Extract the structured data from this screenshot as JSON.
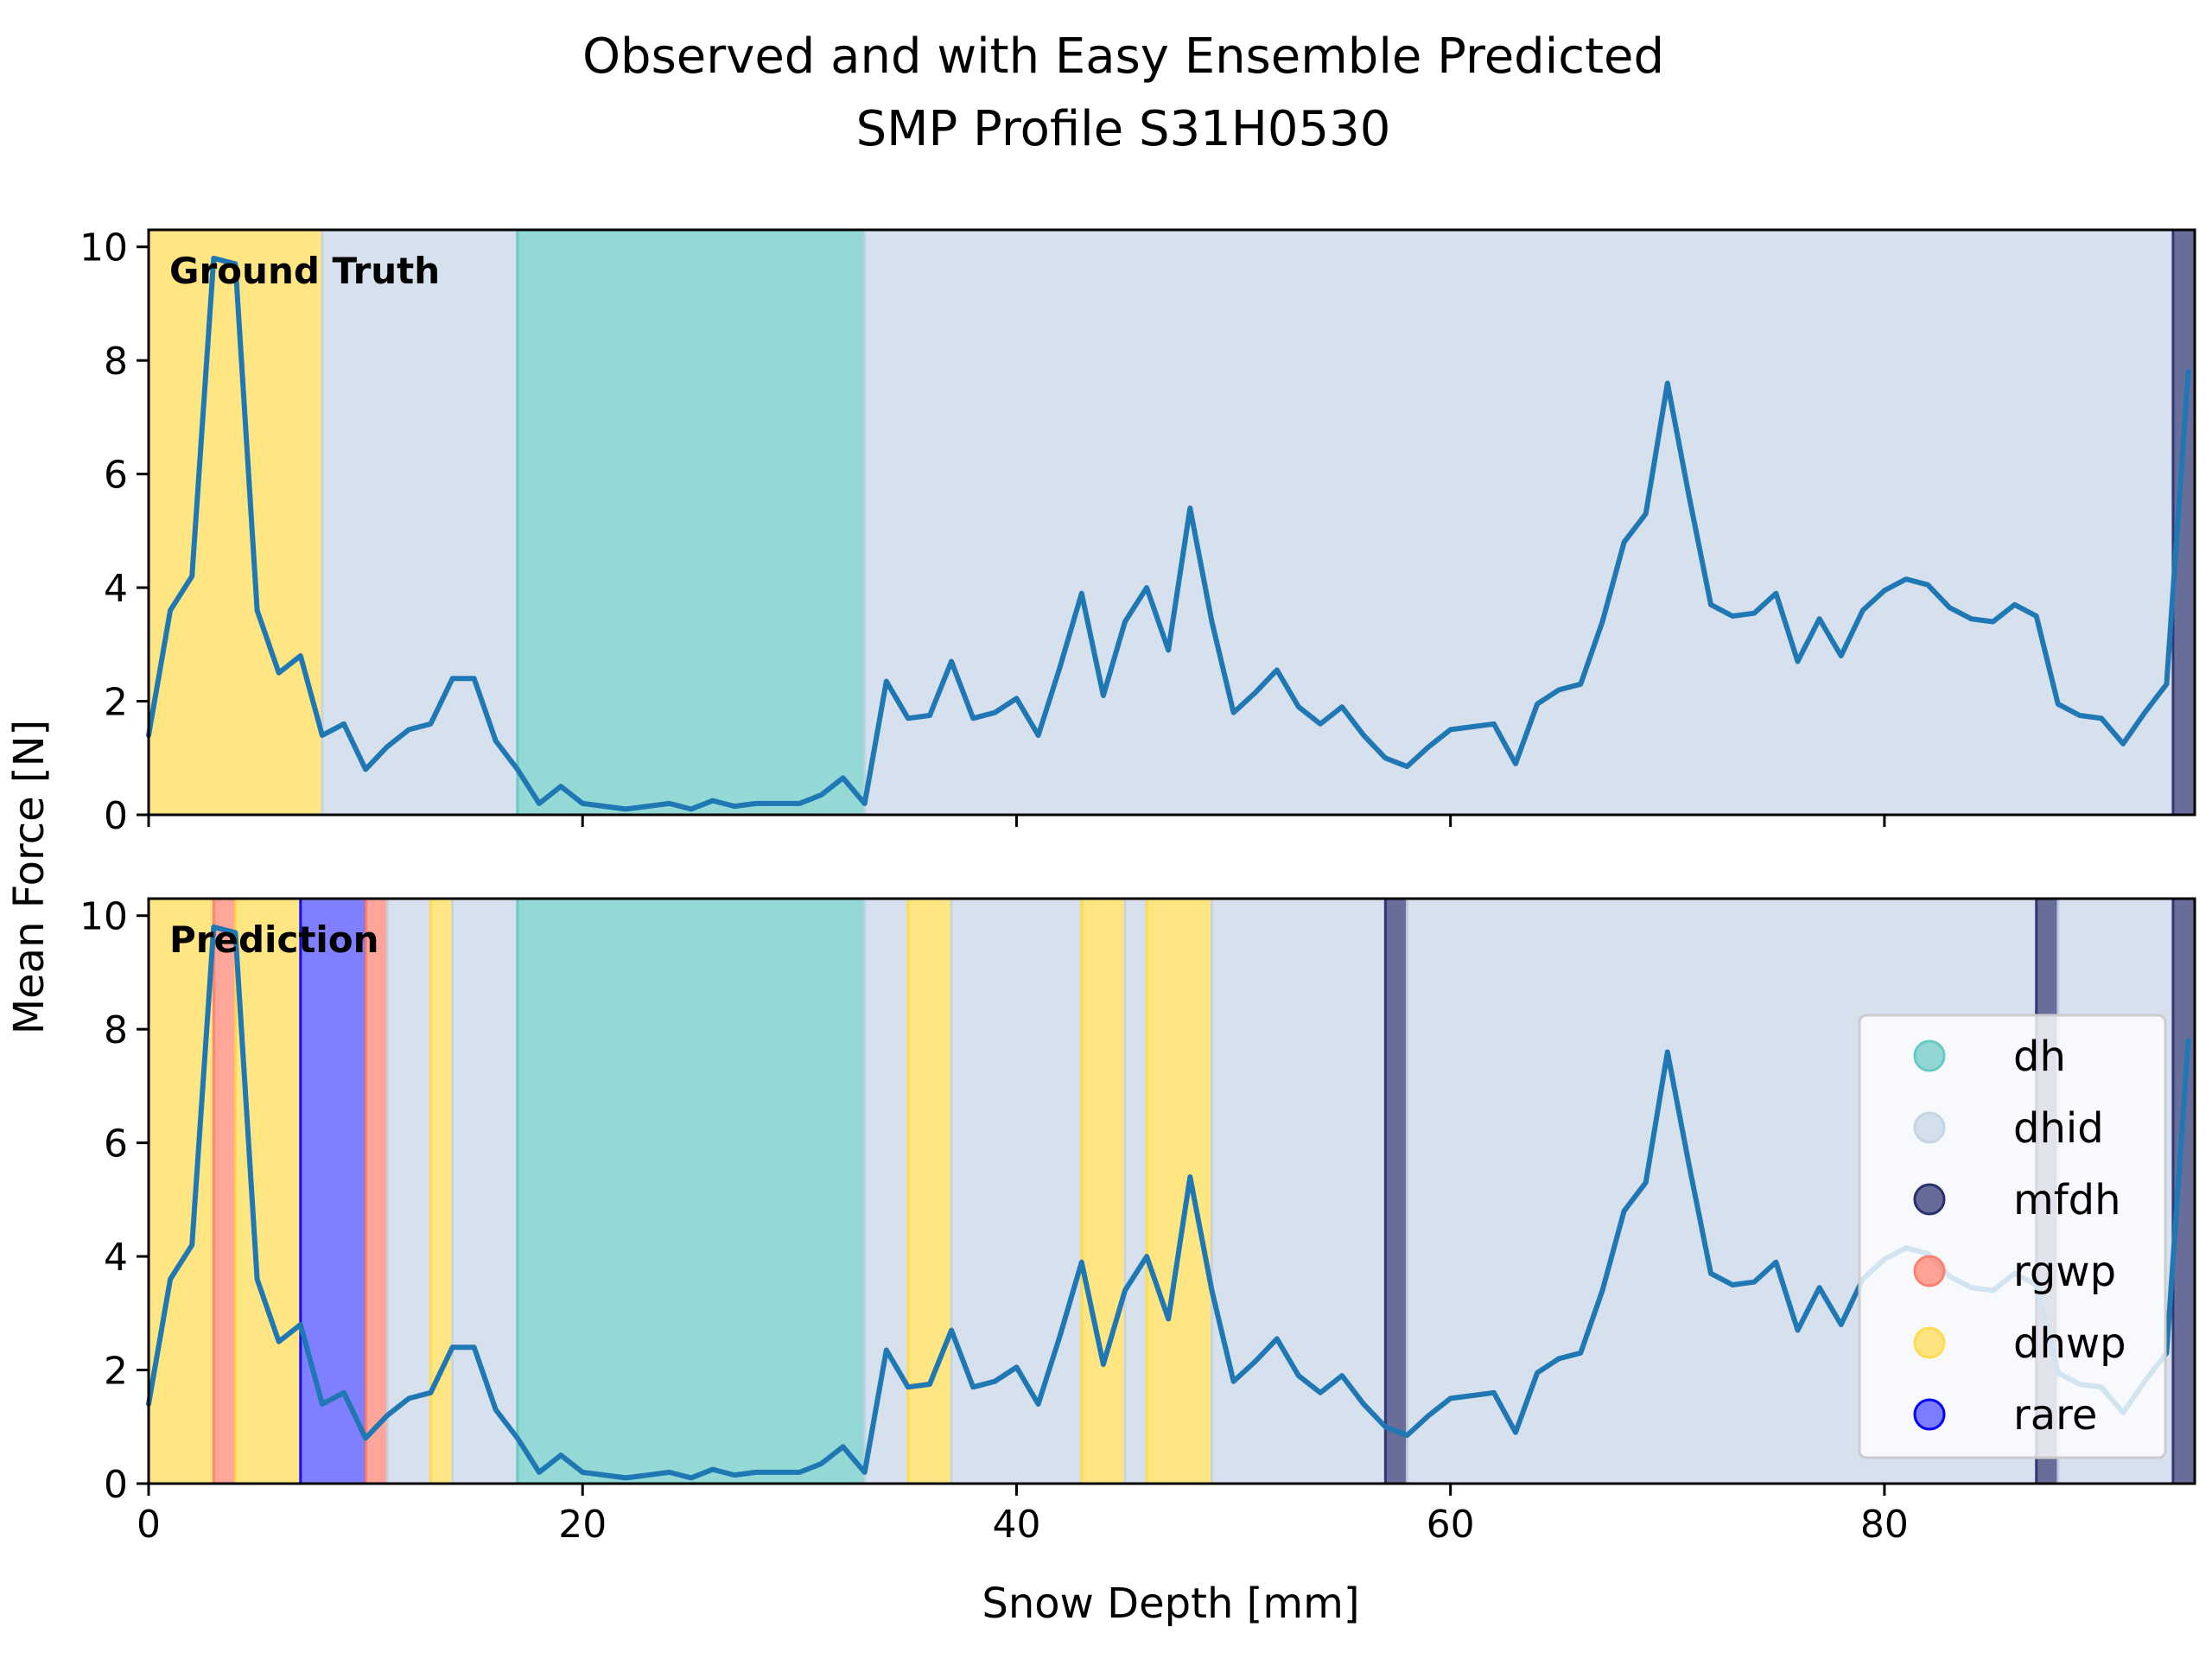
{
  "title_line1": "Observed and with Easy Ensemble Predicted",
  "title_line2": "SMP Profile S31H0530",
  "colors": {
    "line": "#1f77b4",
    "dh": "#66c9c3",
    "dhid": "#c5d4e5",
    "mfdh": "#2a2f6e",
    "rgwp": "#ff7f6e",
    "dhwp": "#ffdb4d",
    "rare": "#0000ff"
  },
  "chart_data": {
    "type": "line",
    "title": "Observed and with Easy Ensemble Predicted SMP Profile S31H0530",
    "xlabel": "Snow Depth [mm]",
    "ylabel": "Mean Force [N]",
    "xlim": [
      0,
      94.3
    ],
    "ylim": [
      0,
      10.3
    ],
    "xticks": [
      0,
      20,
      40,
      60,
      80
    ],
    "yticks": [
      0,
      2,
      4,
      6,
      8,
      10
    ],
    "grid": false,
    "legend_location": "lower-right of bottom panel",
    "x": [
      0,
      1,
      2,
      3,
      4,
      5,
      6,
      7,
      8,
      9,
      10,
      11,
      12,
      13,
      14,
      15,
      16,
      17,
      18,
      19,
      20,
      21,
      22,
      23,
      24,
      25,
      26,
      27,
      28,
      29,
      30,
      31,
      32,
      33,
      34,
      35,
      36,
      37,
      38,
      39,
      40,
      41,
      42,
      43,
      44,
      45,
      46,
      47,
      48,
      49,
      50,
      51,
      52,
      53,
      54,
      55,
      56,
      57,
      58,
      59,
      60,
      61,
      62,
      63,
      64,
      65,
      66,
      67,
      68,
      69,
      70,
      71,
      72,
      73,
      74,
      75,
      76,
      77,
      78,
      79,
      80,
      81,
      82,
      83,
      84,
      85,
      86,
      87,
      88,
      89,
      90,
      91,
      92,
      93,
      94
    ],
    "series": [
      {
        "values": [
          1.4,
          3.6,
          4.2,
          9.8,
          9.7,
          3.6,
          2.5,
          2.8,
          1.4,
          1.6,
          0.8,
          1.2,
          1.5,
          1.6,
          2.4,
          2.4,
          1.3,
          0.8,
          0.2,
          0.5,
          0.2,
          0.15,
          0.1,
          0.15,
          0.2,
          0.1,
          0.25,
          0.15,
          0.2,
          0.2,
          0.2,
          0.35,
          0.65,
          0.2,
          2.35,
          1.7,
          1.75,
          2.7,
          1.7,
          1.8,
          2.05,
          1.4,
          2.6,
          3.9,
          2.1,
          3.4,
          4.0,
          2.9,
          5.4,
          3.4,
          1.8,
          2.15,
          2.55,
          1.9,
          1.6,
          1.9,
          1.4,
          1.0,
          0.85,
          1.2,
          1.5,
          1.55,
          1.6,
          0.9,
          1.95,
          2.2,
          2.3,
          3.4,
          4.8,
          5.3,
          7.6,
          5.6,
          3.7,
          3.5,
          3.55,
          3.9,
          2.7,
          3.45,
          2.8,
          3.6,
          3.95,
          4.15,
          4.05,
          3.65,
          3.45,
          3.4,
          3.7,
          3.5,
          1.95,
          1.75,
          1.7,
          1.25,
          1.8,
          2.3,
          7.8
        ]
      }
    ],
    "panels": [
      {
        "label": "Ground Truth",
        "segments": [
          {
            "from": 0,
            "to": 8,
            "class": "dhwp"
          },
          {
            "from": 8,
            "to": 17,
            "class": "dhid"
          },
          {
            "from": 17,
            "to": 33,
            "class": "dh"
          },
          {
            "from": 33,
            "to": 93.3,
            "class": "dhid"
          },
          {
            "from": 93.3,
            "to": 94.3,
            "class": "mfdh"
          }
        ]
      },
      {
        "label": "Prediction",
        "segments": [
          {
            "from": 0,
            "to": 3,
            "class": "dhwp"
          },
          {
            "from": 3,
            "to": 4,
            "class": "rgwp"
          },
          {
            "from": 4,
            "to": 7,
            "class": "dhwp"
          },
          {
            "from": 7,
            "to": 10,
            "class": "rare"
          },
          {
            "from": 10,
            "to": 11,
            "class": "rgwp"
          },
          {
            "from": 11,
            "to": 13,
            "class": "dhid"
          },
          {
            "from": 13,
            "to": 14,
            "class": "dhwp"
          },
          {
            "from": 14,
            "to": 17,
            "class": "dhid"
          },
          {
            "from": 17,
            "to": 33,
            "class": "dh"
          },
          {
            "from": 33,
            "to": 35,
            "class": "dhid"
          },
          {
            "from": 35,
            "to": 37,
            "class": "dhwp"
          },
          {
            "from": 37,
            "to": 43,
            "class": "dhid"
          },
          {
            "from": 43,
            "to": 45,
            "class": "dhwp"
          },
          {
            "from": 45,
            "to": 46,
            "class": "dhid"
          },
          {
            "from": 46,
            "to": 49,
            "class": "dhwp"
          },
          {
            "from": 49,
            "to": 57,
            "class": "dhid"
          },
          {
            "from": 57,
            "to": 58,
            "class": "mfdh"
          },
          {
            "from": 58,
            "to": 87,
            "class": "dhid"
          },
          {
            "from": 87,
            "to": 88,
            "class": "mfdh"
          },
          {
            "from": 88,
            "to": 93.3,
            "class": "dhid"
          },
          {
            "from": 93.3,
            "to": 94.3,
            "class": "mfdh"
          }
        ]
      }
    ],
    "legend": [
      "dh",
      "dhid",
      "mfdh",
      "rgwp",
      "dhwp",
      "rare"
    ]
  }
}
